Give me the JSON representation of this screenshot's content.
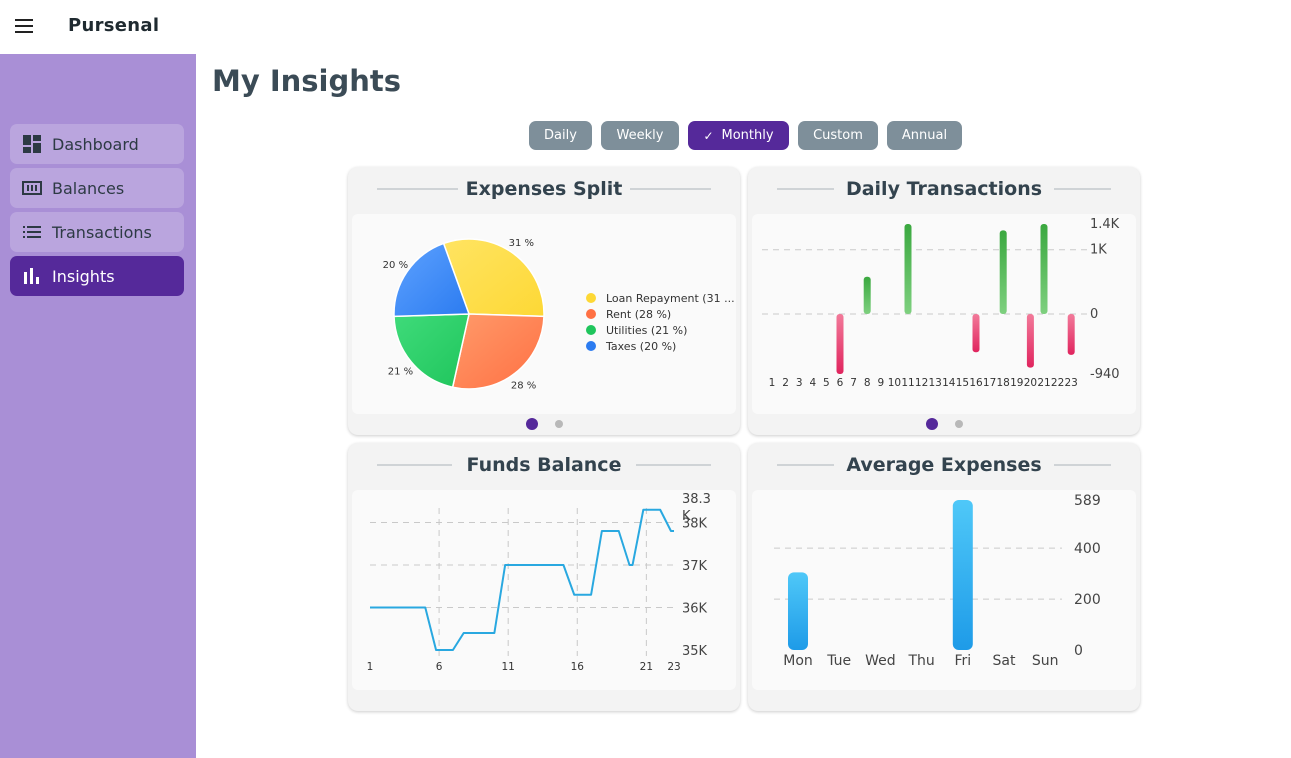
{
  "app": {
    "title": "Pursenal"
  },
  "sidebar": {
    "items": [
      {
        "label": "Dashboard",
        "icon": "dashboard-icon"
      },
      {
        "label": "Balances",
        "icon": "balances-icon"
      },
      {
        "label": "Transactions",
        "icon": "list-icon"
      },
      {
        "label": "Insights",
        "icon": "bar-chart-icon",
        "active": true
      }
    ]
  },
  "page": {
    "title": "My Insights"
  },
  "filters": {
    "options": [
      "Daily",
      "Weekly",
      "Monthly",
      "Custom",
      "Annual"
    ],
    "selected": "Monthly"
  },
  "colors": {
    "accent": "#55299a",
    "sidebar": "#a98fd6",
    "chip": "#7e8f9a",
    "positive": "#4caf50",
    "negative": "#e91e63",
    "line": "#29a8e0",
    "bar": "#29b6f6"
  },
  "cards": {
    "expenses_split": {
      "title": "Expenses Split"
    },
    "daily_transactions": {
      "title": "Daily Transactions"
    },
    "funds_balance": {
      "title": "Funds Balance"
    },
    "average_expenses": {
      "title": "Average Expenses"
    }
  },
  "chart_data": [
    {
      "type": "pie",
      "title": "Expenses Split",
      "categories": [
        "Loan Repayment",
        "Rent",
        "Utilities",
        "Taxes"
      ],
      "values": [
        31,
        28,
        21,
        20
      ],
      "slice_labels": [
        "31 %",
        "28 %",
        "21 %",
        "20 %"
      ],
      "legend": [
        "Loan Repayment (31 ...",
        "Rent (28 %)",
        "Utilities (21 %)",
        "Taxes (20 %)"
      ],
      "colors": [
        "#fdd835",
        "#ff7043",
        "#1fc55c",
        "#2b7bf0"
      ],
      "legend_position": "right"
    },
    {
      "type": "bar",
      "title": "Daily Transactions",
      "x": [
        1,
        2,
        3,
        4,
        5,
        6,
        7,
        8,
        9,
        10,
        11,
        12,
        13,
        14,
        15,
        16,
        17,
        18,
        19,
        20,
        21,
        22,
        23
      ],
      "values": [
        0,
        0,
        0,
        0,
        0,
        -940,
        0,
        580,
        0,
        0,
        1400,
        0,
        0,
        0,
        0,
        -600,
        0,
        1300,
        0,
        -840,
        1400,
        0,
        -640
      ],
      "yticks": [
        "1.4K",
        "1K",
        "0",
        "-940"
      ],
      "ylim": [
        -940,
        1400
      ],
      "grid": true
    },
    {
      "type": "line",
      "title": "Funds Balance",
      "x": [
        1,
        2,
        3,
        4,
        5,
        6,
        7,
        8,
        9,
        10,
        11,
        12,
        13,
        14,
        15,
        16,
        17,
        18,
        19,
        20,
        21,
        22,
        23
      ],
      "values": [
        36000,
        36000,
        36000,
        36000,
        36000,
        35000,
        35000,
        35400,
        35400,
        35400,
        37000,
        37000,
        37000,
        37000,
        37000,
        36300,
        36300,
        37800,
        37800,
        37000,
        38300,
        38300,
        37800
      ],
      "xticks": [
        "1",
        "6",
        "11",
        "16",
        "21",
        "23"
      ],
      "yticks": [
        "38.3\nK",
        "38K",
        "37K",
        "36K",
        "35K"
      ],
      "ylim": [
        35000,
        38300
      ],
      "grid": true
    },
    {
      "type": "bar",
      "title": "Average Expenses",
      "categories": [
        "Mon",
        "Tue",
        "Wed",
        "Thu",
        "Fri",
        "Sat",
        "Sun"
      ],
      "values": [
        305,
        0,
        0,
        0,
        589,
        0,
        0
      ],
      "yticks": [
        "589",
        "400",
        "200",
        "0"
      ],
      "ylim": [
        0,
        589
      ],
      "grid": true
    }
  ]
}
